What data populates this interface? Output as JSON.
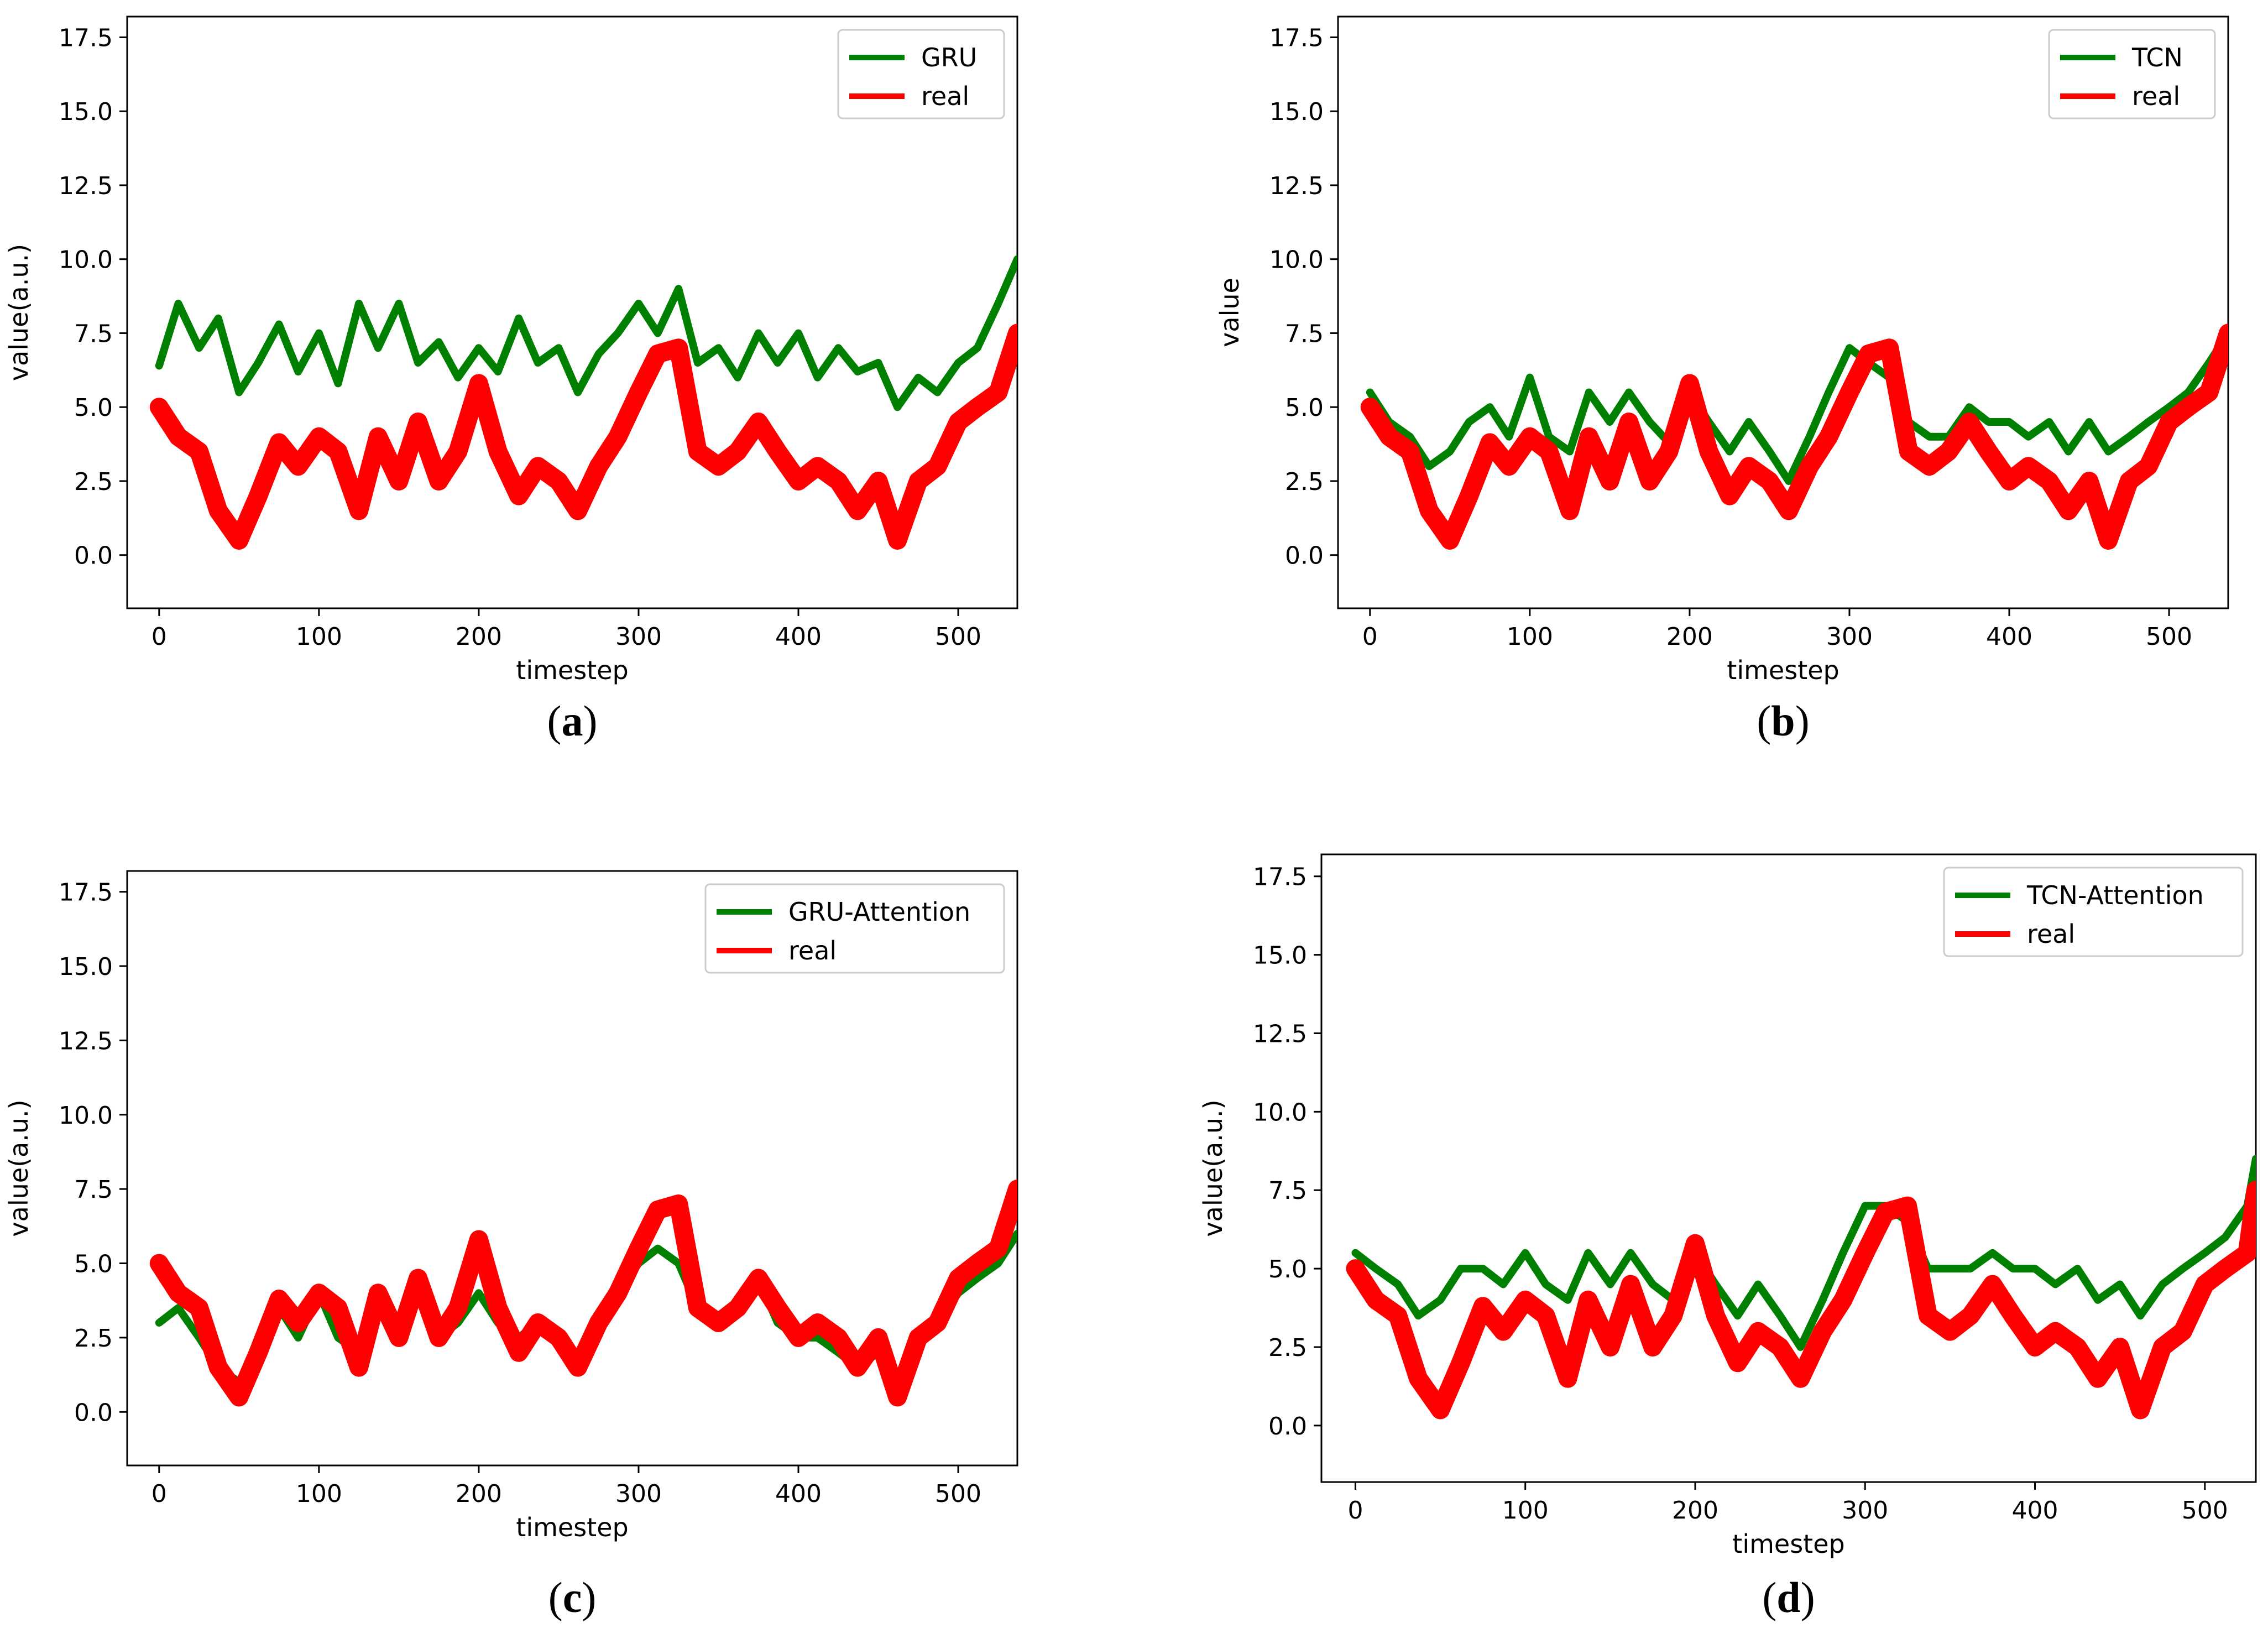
{
  "figure": {
    "panels": [
      "a",
      "b",
      "c",
      "d"
    ]
  },
  "chart_data": [
    {
      "type": "line",
      "panel": "a",
      "caption_letter": "a",
      "xlabel": "timestep",
      "ylabel": "value(a.u.)",
      "xlim": [
        -20,
        537
      ],
      "ylim": [
        -1.8,
        18.2
      ],
      "xticks": [
        0,
        100,
        200,
        300,
        400,
        500
      ],
      "yticks": [
        0.0,
        2.5,
        5.0,
        7.5,
        10.0,
        12.5,
        15.0,
        17.5
      ],
      "legend_position": "top-right",
      "legend": [
        "GRU",
        "real"
      ],
      "colors": {
        "pred": "#008000",
        "real": "#ff0000"
      },
      "series": [
        {
          "name": "GRU",
          "role": "pred",
          "x": [
            0,
            12,
            25,
            37,
            50,
            62,
            75,
            87,
            100,
            112,
            125,
            137,
            150,
            162,
            175,
            187,
            200,
            212,
            225,
            237,
            250,
            262,
            275,
            287,
            300,
            312,
            325,
            337,
            350,
            362,
            375,
            387,
            400,
            412,
            425,
            437,
            450,
            462,
            475,
            487,
            500,
            512,
            525,
            537
          ],
          "values": [
            6.4,
            8.5,
            7.0,
            8.0,
            5.5,
            6.5,
            7.8,
            6.2,
            7.5,
            5.8,
            8.5,
            7.0,
            8.5,
            6.5,
            7.2,
            6.0,
            7.0,
            6.2,
            8.0,
            6.5,
            7.0,
            5.5,
            6.8,
            7.5,
            8.5,
            7.5,
            9.0,
            6.5,
            7.0,
            6.0,
            7.5,
            6.5,
            7.5,
            6.0,
            7.0,
            6.2,
            6.5,
            5.0,
            6.0,
            5.5,
            6.5,
            7.0,
            8.5,
            10.0
          ]
        },
        {
          "name": "real",
          "role": "real",
          "x": [
            0,
            12,
            25,
            37,
            50,
            62,
            75,
            87,
            100,
            112,
            125,
            137,
            150,
            162,
            175,
            187,
            200,
            212,
            225,
            237,
            250,
            262,
            275,
            287,
            300,
            312,
            325,
            337,
            350,
            362,
            375,
            387,
            400,
            412,
            425,
            437,
            450,
            462,
            475,
            487,
            500,
            512,
            525,
            537
          ],
          "values": [
            5.0,
            4.0,
            3.5,
            1.5,
            0.5,
            2.0,
            3.8,
            3.0,
            4.0,
            3.5,
            1.5,
            4.0,
            2.5,
            4.5,
            2.5,
            3.5,
            5.8,
            3.5,
            2.0,
            3.0,
            2.5,
            1.5,
            3.0,
            4.0,
            5.5,
            6.8,
            7.0,
            3.5,
            3.0,
            3.5,
            4.5,
            3.5,
            2.5,
            3.0,
            2.5,
            1.5,
            2.5,
            0.5,
            2.5,
            3.0,
            4.5,
            5.0,
            5.5,
            7.5
          ]
        }
      ]
    },
    {
      "type": "line",
      "panel": "b",
      "caption_letter": "b",
      "xlabel": "timestep",
      "ylabel": "value",
      "xlim": [
        -20,
        537
      ],
      "ylim": [
        -1.8,
        18.2
      ],
      "xticks": [
        0,
        100,
        200,
        300,
        400,
        500
      ],
      "yticks": [
        0.0,
        2.5,
        5.0,
        7.5,
        10.0,
        12.5,
        15.0,
        17.5
      ],
      "legend_position": "top-right",
      "legend": [
        "TCN",
        "real"
      ],
      "colors": {
        "pred": "#008000",
        "real": "#ff0000"
      },
      "series": [
        {
          "name": "TCN",
          "role": "pred",
          "x": [
            0,
            12,
            25,
            37,
            50,
            62,
            75,
            87,
            100,
            112,
            125,
            137,
            150,
            162,
            175,
            187,
            200,
            212,
            225,
            237,
            250,
            262,
            275,
            287,
            300,
            312,
            325,
            337,
            350,
            362,
            375,
            387,
            400,
            412,
            425,
            437,
            450,
            462,
            475,
            487,
            500,
            512,
            525,
            537
          ],
          "values": [
            5.5,
            4.5,
            4.0,
            3.0,
            3.5,
            4.5,
            5.0,
            4.0,
            6.0,
            4.0,
            3.5,
            5.5,
            4.5,
            5.5,
            4.5,
            3.8,
            5.5,
            4.5,
            3.5,
            4.5,
            3.5,
            2.5,
            4.0,
            5.5,
            7.0,
            6.5,
            6.0,
            4.5,
            4.0,
            4.0,
            5.0,
            4.5,
            4.5,
            4.0,
            4.5,
            3.5,
            4.5,
            3.5,
            4.0,
            4.5,
            5.0,
            5.5,
            6.5,
            7.5
          ]
        },
        {
          "name": "real",
          "role": "real",
          "x": [
            0,
            12,
            25,
            37,
            50,
            62,
            75,
            87,
            100,
            112,
            125,
            137,
            150,
            162,
            175,
            187,
            200,
            212,
            225,
            237,
            250,
            262,
            275,
            287,
            300,
            312,
            325,
            337,
            350,
            362,
            375,
            387,
            400,
            412,
            425,
            437,
            450,
            462,
            475,
            487,
            500,
            512,
            525,
            537
          ],
          "values": [
            5.0,
            4.0,
            3.5,
            1.5,
            0.5,
            2.0,
            3.8,
            3.0,
            4.0,
            3.5,
            1.5,
            4.0,
            2.5,
            4.5,
            2.5,
            3.5,
            5.8,
            3.5,
            2.0,
            3.0,
            2.5,
            1.5,
            3.0,
            4.0,
            5.5,
            6.8,
            7.0,
            3.5,
            3.0,
            3.5,
            4.5,
            3.5,
            2.5,
            3.0,
            2.5,
            1.5,
            2.5,
            0.5,
            2.5,
            3.0,
            4.5,
            5.0,
            5.5,
            7.5
          ]
        }
      ]
    },
    {
      "type": "line",
      "panel": "c",
      "caption_letter": "c",
      "xlabel": "timestep",
      "ylabel": "value(a.u.)",
      "xlim": [
        -20,
        537
      ],
      "ylim": [
        -1.8,
        18.2
      ],
      "xticks": [
        0,
        100,
        200,
        300,
        400,
        500
      ],
      "yticks": [
        0.0,
        2.5,
        5.0,
        7.5,
        10.0,
        12.5,
        15.0,
        17.5
      ],
      "legend_position": "top-right",
      "legend": [
        "GRU-Attention",
        "real"
      ],
      "colors": {
        "pred": "#008000",
        "real": "#ff0000"
      },
      "series": [
        {
          "name": "GRU-Attention",
          "role": "pred",
          "x": [
            0,
            12,
            25,
            37,
            50,
            62,
            75,
            87,
            100,
            112,
            125,
            137,
            150,
            162,
            175,
            187,
            200,
            212,
            225,
            237,
            250,
            262,
            275,
            287,
            300,
            312,
            325,
            337,
            350,
            362,
            375,
            387,
            400,
            412,
            425,
            437,
            450,
            462,
            475,
            487,
            500,
            512,
            525,
            537
          ],
          "values": [
            3.0,
            3.5,
            2.5,
            1.5,
            1.0,
            2.0,
            3.5,
            2.5,
            4.0,
            2.5,
            2.0,
            3.5,
            2.5,
            4.0,
            2.5,
            3.0,
            4.0,
            3.0,
            2.5,
            3.0,
            2.5,
            1.5,
            3.0,
            4.0,
            5.0,
            5.5,
            5.0,
            3.5,
            3.0,
            3.5,
            4.5,
            3.0,
            2.5,
            2.5,
            2.0,
            1.5,
            2.0,
            0.5,
            2.5,
            3.0,
            4.0,
            4.5,
            5.0,
            6.0
          ]
        },
        {
          "name": "real",
          "role": "real",
          "x": [
            0,
            12,
            25,
            37,
            50,
            62,
            75,
            87,
            100,
            112,
            125,
            137,
            150,
            162,
            175,
            187,
            200,
            212,
            225,
            237,
            250,
            262,
            275,
            287,
            300,
            312,
            325,
            337,
            350,
            362,
            375,
            387,
            400,
            412,
            425,
            437,
            450,
            462,
            475,
            487,
            500,
            512,
            525,
            537
          ],
          "values": [
            5.0,
            4.0,
            3.5,
            1.5,
            0.5,
            2.0,
            3.8,
            3.0,
            4.0,
            3.5,
            1.5,
            4.0,
            2.5,
            4.5,
            2.5,
            3.5,
            5.8,
            3.5,
            2.0,
            3.0,
            2.5,
            1.5,
            3.0,
            4.0,
            5.5,
            6.8,
            7.0,
            3.5,
            3.0,
            3.5,
            4.5,
            3.5,
            2.5,
            3.0,
            2.5,
            1.5,
            2.5,
            0.5,
            2.5,
            3.0,
            4.5,
            5.0,
            5.5,
            7.5
          ]
        }
      ]
    },
    {
      "type": "line",
      "panel": "d",
      "caption_letter": "d",
      "xlabel": "timestep",
      "ylabel": "value(a.u.)",
      "xlim": [
        -20,
        530
      ],
      "ylim": [
        -1.8,
        18.2
      ],
      "xticks": [
        0,
        100,
        200,
        300,
        400,
        500
      ],
      "yticks": [
        0.0,
        2.5,
        5.0,
        7.5,
        10.0,
        12.5,
        15.0,
        17.5
      ],
      "legend_position": "top-right",
      "legend": [
        "TCN-Attention",
        "real"
      ],
      "colors": {
        "pred": "#008000",
        "real": "#ff0000"
      },
      "series": [
        {
          "name": "TCN-Attention",
          "role": "pred",
          "x": [
            0,
            12,
            25,
            37,
            50,
            62,
            75,
            87,
            100,
            112,
            125,
            137,
            150,
            162,
            175,
            187,
            200,
            212,
            225,
            237,
            250,
            262,
            275,
            287,
            300,
            312,
            325,
            337,
            350,
            362,
            375,
            387,
            400,
            412,
            425,
            437,
            450,
            462,
            475,
            487,
            500,
            512,
            525,
            530
          ],
          "values": [
            5.5,
            5.0,
            4.5,
            3.5,
            4.0,
            5.0,
            5.0,
            4.5,
            5.5,
            4.5,
            4.0,
            5.5,
            4.5,
            5.5,
            4.5,
            4.0,
            5.5,
            4.5,
            3.5,
            4.5,
            3.5,
            2.5,
            4.0,
            5.5,
            7.0,
            7.0,
            6.5,
            5.0,
            5.0,
            5.0,
            5.5,
            5.0,
            5.0,
            4.5,
            5.0,
            4.0,
            4.5,
            3.5,
            4.5,
            5.0,
            5.5,
            6.0,
            7.0,
            8.5
          ]
        },
        {
          "name": "real",
          "role": "real",
          "x": [
            0,
            12,
            25,
            37,
            50,
            62,
            75,
            87,
            100,
            112,
            125,
            137,
            150,
            162,
            175,
            187,
            200,
            212,
            225,
            237,
            250,
            262,
            275,
            287,
            300,
            312,
            325,
            337,
            350,
            362,
            375,
            387,
            400,
            412,
            425,
            437,
            450,
            462,
            475,
            487,
            500,
            512,
            525,
            530
          ],
          "values": [
            5.0,
            4.0,
            3.5,
            1.5,
            0.5,
            2.0,
            3.8,
            3.0,
            4.0,
            3.5,
            1.5,
            4.0,
            2.5,
            4.5,
            2.5,
            3.5,
            5.8,
            3.5,
            2.0,
            3.0,
            2.5,
            1.5,
            3.0,
            4.0,
            5.5,
            6.8,
            7.0,
            3.5,
            3.0,
            3.5,
            4.5,
            3.5,
            2.5,
            3.0,
            2.5,
            1.5,
            2.5,
            0.5,
            2.5,
            3.0,
            4.5,
            5.0,
            5.5,
            7.5
          ]
        }
      ]
    }
  ]
}
